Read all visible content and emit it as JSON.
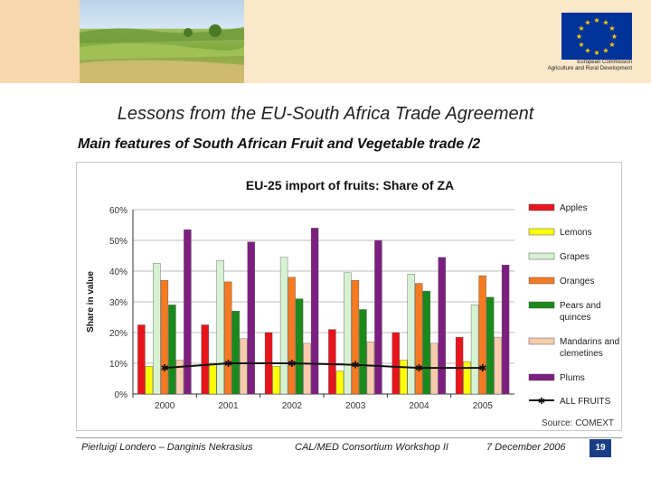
{
  "header": {
    "eu_caption_line1": "European Commission",
    "eu_caption_line2": "Agriculture and Rural Development"
  },
  "slide": {
    "title": "Lessons from the EU-South Africa Trade Agreement",
    "subtitle": "Main features of South African Fruit and Vegetable trade /2"
  },
  "footer": {
    "authors": "Pierluigi Londero – Danginis Nekrasius",
    "event": "CAL/MED Consortium Workshop II",
    "date": "7 December 2006",
    "page": "19"
  },
  "colors": {
    "Apples": "#e8141c",
    "Lemons": "#ffff00",
    "Grapes": "#d6f2d2",
    "Oranges": "#f57a22",
    "Pears and quinces": "#1a8a1a",
    "Mandarins and clemetines": "#f8cbad",
    "Plums": "#7d1f80",
    "ALL FRUITS": "#111111"
  },
  "chart_data": {
    "type": "bar",
    "title": "EU-25 import of fruits: Share of ZA",
    "ylabel": "Share in value",
    "xlabel": "",
    "source": "Source: COMEXT",
    "categories": [
      "2000",
      "2001",
      "2002",
      "2003",
      "2004",
      "2005"
    ],
    "ylim": [
      0,
      0.6
    ],
    "yticks": [
      "0%",
      "10%",
      "20%",
      "30%",
      "40%",
      "50%",
      "60%"
    ],
    "legend_position": "right",
    "series": [
      {
        "name": "Apples",
        "values": [
          0.225,
          0.225,
          0.2,
          0.21,
          0.2,
          0.185
        ]
      },
      {
        "name": "Lemons",
        "values": [
          0.09,
          0.1,
          0.09,
          0.075,
          0.11,
          0.105
        ]
      },
      {
        "name": "Grapes",
        "values": [
          0.425,
          0.435,
          0.445,
          0.395,
          0.39,
          0.29
        ]
      },
      {
        "name": "Oranges",
        "values": [
          0.37,
          0.365,
          0.38,
          0.37,
          0.36,
          0.385
        ]
      },
      {
        "name": "Pears and quinces",
        "values": [
          0.29,
          0.27,
          0.31,
          0.275,
          0.335,
          0.315
        ]
      },
      {
        "name": "Mandarins and clemetines",
        "values": [
          0.11,
          0.18,
          0.165,
          0.17,
          0.165,
          0.185
        ]
      },
      {
        "name": "Plums",
        "values": [
          0.535,
          0.495,
          0.54,
          0.5,
          0.445,
          0.42
        ]
      }
    ],
    "line_series": {
      "name": "ALL FRUITS",
      "values": [
        0.085,
        0.1,
        0.1,
        0.095,
        0.085,
        0.085
      ]
    }
  }
}
